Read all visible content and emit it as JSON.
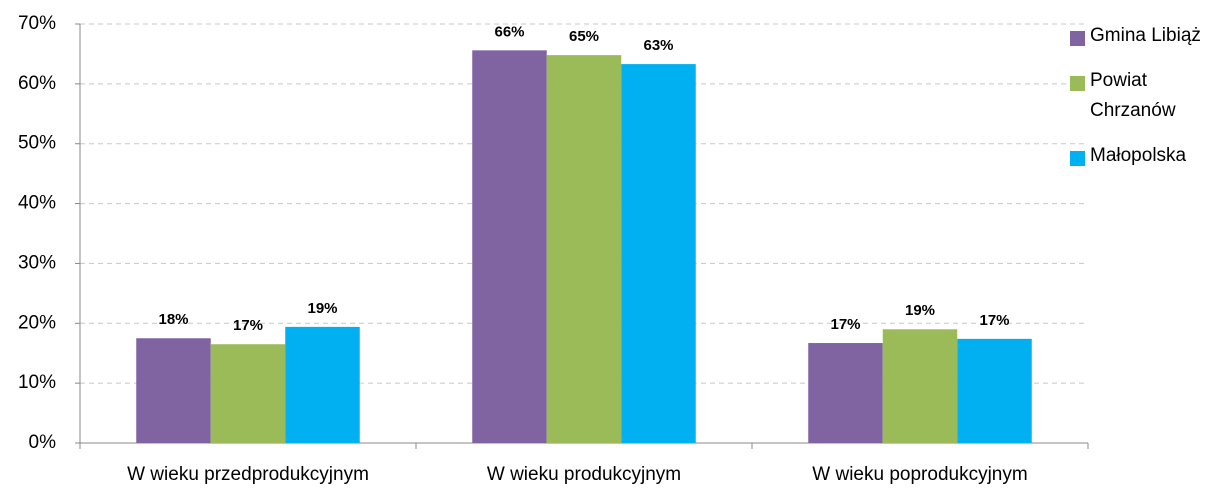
{
  "chart_data": {
    "type": "bar",
    "categories": [
      "W wieku przedprodukcyjnym",
      "W wieku produkcyjnym",
      "W wieku poprodukcyjnym"
    ],
    "series": [
      {
        "name": "Gmina Libiąż",
        "color": "#8064a2",
        "values": [
          17.5,
          65.6,
          16.7
        ],
        "value_labels": [
          "18%",
          "66%",
          "17%"
        ]
      },
      {
        "name": "Powiat Chrzanów",
        "color": "#9bbb59",
        "values": [
          16.5,
          64.8,
          19.0
        ],
        "value_labels": [
          "17%",
          "65%",
          "19%"
        ]
      },
      {
        "name": "Małopolska",
        "color": "#00b0f0",
        "values": [
          19.4,
          63.3,
          17.4
        ],
        "value_labels": [
          "19%",
          "63%",
          "17%"
        ]
      }
    ],
    "ylim": [
      0,
      70
    ],
    "yticks": [
      {
        "value": 0,
        "label": "0%"
      },
      {
        "value": 10,
        "label": "10%"
      },
      {
        "value": 20,
        "label": "20%"
      },
      {
        "value": 30,
        "label": "30%"
      },
      {
        "value": 40,
        "label": "40%"
      },
      {
        "value": 50,
        "label": "50%"
      },
      {
        "value": 60,
        "label": "60%"
      },
      {
        "value": 70,
        "label": "70%"
      }
    ],
    "grid": true,
    "legend": "right"
  }
}
